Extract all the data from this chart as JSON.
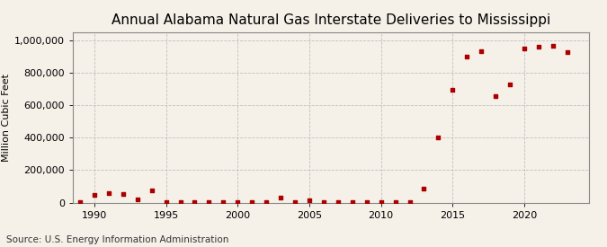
{
  "title": "Annual Alabama Natural Gas Interstate Deliveries to Mississippi",
  "ylabel": "Million Cubic Feet",
  "source": "Source: U.S. Energy Information Administration",
  "background_color": "#f5f0e8",
  "plot_background_color": "#f5f0e8",
  "marker_color": "#aa0000",
  "years": [
    1989,
    1990,
    1991,
    1992,
    1993,
    1994,
    1995,
    1996,
    1997,
    1998,
    1999,
    2000,
    2001,
    2002,
    2003,
    2004,
    2005,
    2006,
    2007,
    2008,
    2009,
    2010,
    2011,
    2012,
    2013,
    2014,
    2015,
    2016,
    2017,
    2018,
    2019,
    2020,
    2021,
    2022,
    2023
  ],
  "values": [
    500,
    48000,
    58000,
    52000,
    18000,
    72000,
    3000,
    1500,
    800,
    1500,
    1000,
    1500,
    2500,
    1200,
    28000,
    1800,
    13000,
    4000,
    1200,
    800,
    800,
    800,
    800,
    4000,
    88000,
    400000,
    693000,
    898000,
    933000,
    658000,
    728000,
    948000,
    958000,
    963000,
    928000
  ],
  "ylim": [
    0,
    1050000
  ],
  "xlim": [
    1988.5,
    2024.5
  ],
  "yticks": [
    0,
    200000,
    400000,
    600000,
    800000,
    1000000
  ],
  "xticks": [
    1990,
    1995,
    2000,
    2005,
    2010,
    2015,
    2020
  ],
  "grid_color": "#bbbbbb",
  "title_fontsize": 11,
  "axis_fontsize": 8,
  "source_fontsize": 7.5,
  "title_fontweight": "normal"
}
